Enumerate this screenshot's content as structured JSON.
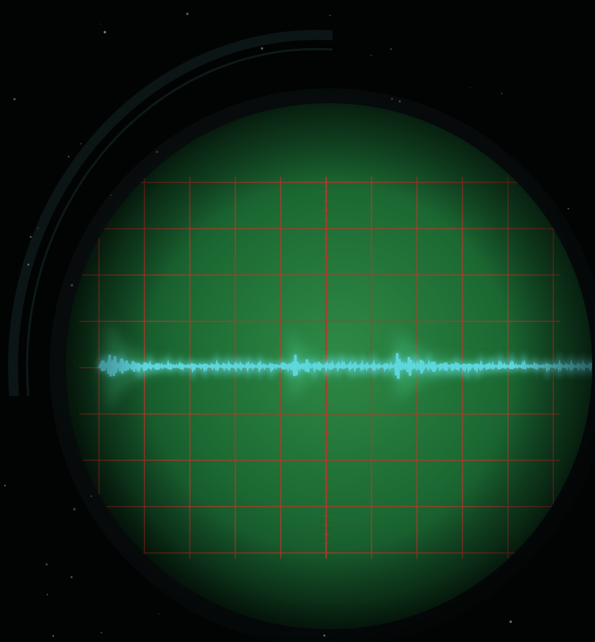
{
  "scene": {
    "subject": "oscilloscope-crt-screen",
    "colors": {
      "background": "#020404",
      "bezel": "#0d1414",
      "phosphor_bright": "#2f8a46",
      "phosphor_mid": "#1c6a33",
      "phosphor_edge": "#0c3a1c",
      "graticule": "#b23a2a",
      "trace": "#5fd8e0",
      "trace_glow": "#3fb87a"
    },
    "graticule": {
      "divisions_horizontal": 10,
      "divisions_vertical": 8,
      "minor_ticks_per_division": 5
    },
    "trace": {
      "shape": "damped-burst-waveform",
      "bursts": 3
    }
  }
}
